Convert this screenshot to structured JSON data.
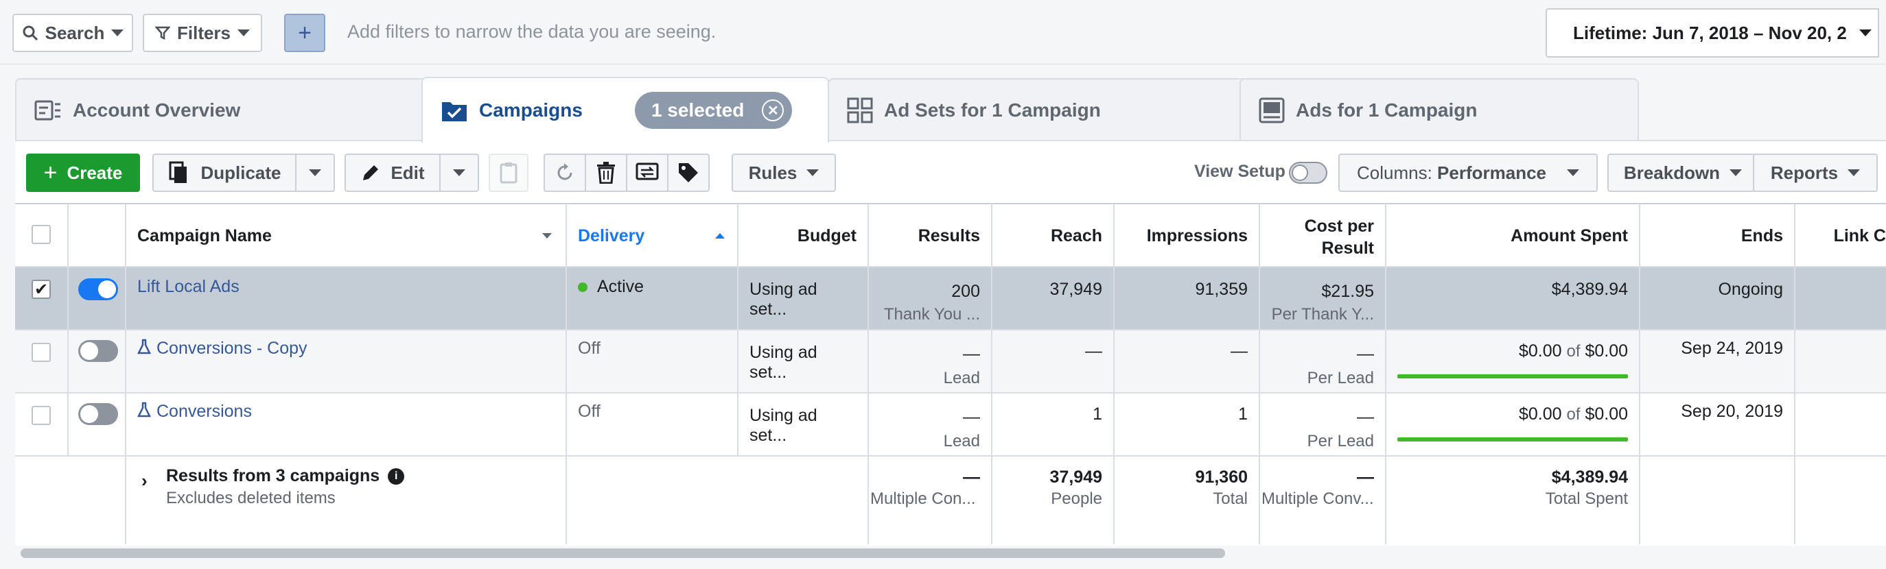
{
  "filterbar": {
    "search_label": "Search",
    "filters_label": "Filters",
    "add_label": "+",
    "hint": "Add filters to narrow the data you are seeing.",
    "date_range": "Lifetime: Jun 7, 2018 – Nov 20, 2"
  },
  "tabs": [
    {
      "label": "Account Overview",
      "icon": "account-overview-icon"
    },
    {
      "label": "Campaigns",
      "icon": "campaigns-folder-icon",
      "selected_badge": "1 selected"
    },
    {
      "label": "Ad Sets for 1 Campaign",
      "icon": "ad-sets-grid-icon"
    },
    {
      "label": "Ads for 1 Campaign",
      "icon": "ads-icon"
    }
  ],
  "toolbar": {
    "create": "Create",
    "duplicate": "Duplicate",
    "edit": "Edit",
    "rules": "Rules",
    "view_setup": "View Setup",
    "columns_prefix": "Columns: ",
    "columns_value": "Performance",
    "breakdown": "Breakdown",
    "reports": "Reports"
  },
  "table": {
    "headers": {
      "name": "Campaign Name",
      "delivery": "Delivery",
      "budget": "Budget",
      "results": "Results",
      "reach": "Reach",
      "impressions": "Impressions",
      "cost_line1": "Cost per",
      "cost_line2": "Result",
      "amount": "Amount Spent",
      "ends": "Ends",
      "link": "Link C"
    },
    "rows": [
      {
        "name": "Lift Local Ads",
        "delivery": "Active",
        "budget": "Using ad set...",
        "results": "200",
        "results_sub": "Thank You ...",
        "reach": "37,949",
        "impressions": "91,359",
        "cost": "$21.95",
        "cost_sub": "Per Thank Y...",
        "amount": "$4,389.94",
        "ends": "Ongoing",
        "checked": true,
        "on": true
      },
      {
        "name": "Conversions - Copy",
        "delivery": "Off",
        "budget": "Using ad set...",
        "results": "—",
        "results_sub": "Lead",
        "reach": "—",
        "impressions": "—",
        "cost": "—",
        "cost_sub": "Per Lead",
        "amount": "$0.00",
        "amount_of": "of",
        "amount_total": "$0.00",
        "ends": "Sep 24, 2019",
        "checked": false,
        "on": false
      },
      {
        "name": "Conversions",
        "delivery": "Off",
        "budget": "Using ad set...",
        "results": "—",
        "results_sub": "Lead",
        "reach": "1",
        "impressions": "1",
        "cost": "—",
        "cost_sub": "Per Lead",
        "amount": "$0.00",
        "amount_of": "of",
        "amount_total": "$0.00",
        "ends": "Sep 20, 2019",
        "checked": false,
        "on": false
      }
    ],
    "summary": {
      "title": "Results from 3 campaigns",
      "subtitle": "Excludes deleted items",
      "results": "—",
      "results_sub": "Multiple Con...",
      "reach": "37,949",
      "reach_sub": "People",
      "impressions": "91,360",
      "impressions_sub": "Total",
      "cost": "—",
      "cost_sub": "Multiple Conv...",
      "amount": "$4,389.94",
      "amount_sub": "Total Spent"
    }
  },
  "colors": {
    "accent": "#1877f2",
    "create": "#1b9a2f",
    "active_dot": "#42b72a",
    "selected_row": "#c4cdd6"
  }
}
